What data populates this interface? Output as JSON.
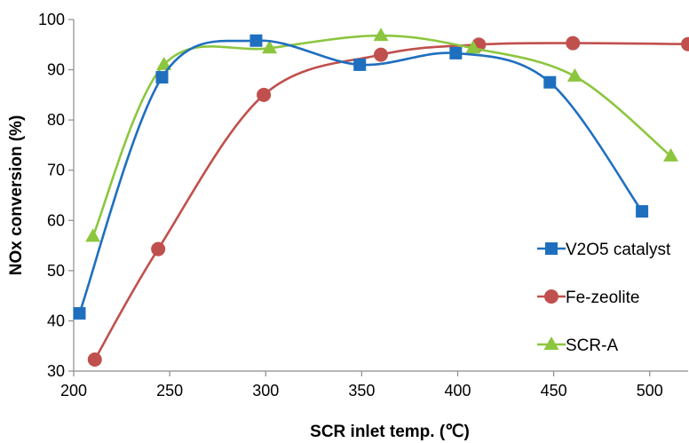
{
  "chart_data": {
    "type": "line",
    "xlabel": "SCR inlet temp. (℃)",
    "ylabel": "NOx conversion (%)",
    "xlim": [
      200,
      520
    ],
    "ylim": [
      30,
      100
    ],
    "xticks": [
      200,
      250,
      300,
      350,
      400,
      450,
      500
    ],
    "yticks": [
      30,
      40,
      50,
      60,
      70,
      80,
      90,
      100
    ],
    "x_tick_labels": [
      "200",
      "250",
      "300",
      "350",
      "400",
      "450",
      "500"
    ],
    "y_tick_labels": [
      "30",
      "40",
      "50",
      "60",
      "70",
      "80",
      "90",
      "100"
    ],
    "grid": false,
    "legend_position": "right",
    "smooth": true,
    "series": [
      {
        "name": "V2O5 catalyst",
        "color": "#1f6fbf",
        "marker": "square",
        "x": [
          203,
          246,
          295,
          349,
          399,
          448,
          496
        ],
        "y": [
          41.5,
          88.5,
          95.8,
          91,
          93.3,
          87.5,
          61.8
        ]
      },
      {
        "name": "Fe-zeolite",
        "color": "#c0504d",
        "marker": "circle",
        "x": [
          211,
          244,
          299,
          360,
          411,
          460,
          520
        ],
        "y": [
          32.3,
          54.3,
          85,
          93,
          95,
          95.3,
          95.1
        ]
      },
      {
        "name": "SCR-A",
        "color": "#8cc63f",
        "marker": "triangle",
        "x": [
          210,
          247,
          302,
          360,
          408,
          461,
          511
        ],
        "y": [
          56.8,
          91,
          94.3,
          96.8,
          94.3,
          88.7,
          72.8
        ]
      }
    ]
  }
}
